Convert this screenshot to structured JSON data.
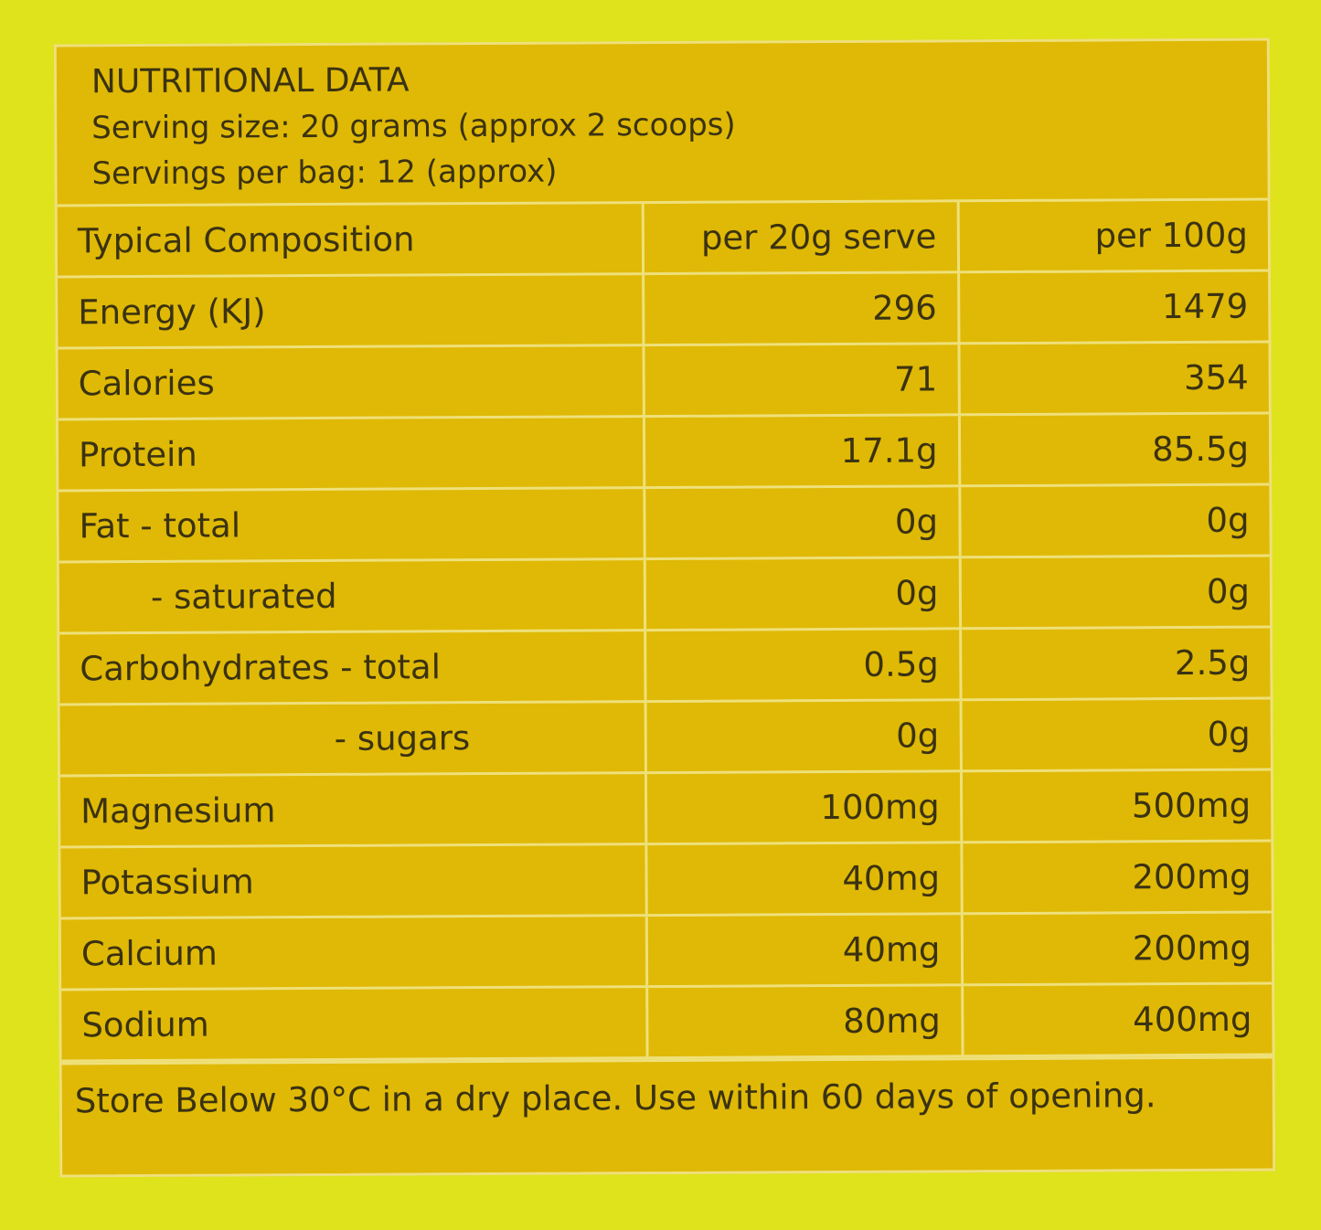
{
  "title": "NUTRITIONAL DATA",
  "serving_size": "Serving size:  20 grams (approx 2 scoops)",
  "servings_per_bag": "Servings per bag: 12 (approx)",
  "table": {
    "headers": [
      "Typical Composition",
      "per 20g serve",
      "per 100g"
    ],
    "rows": [
      {
        "label": "Energy (KJ)",
        "per_serve": "296",
        "per_100g": "1479",
        "indent": 0
      },
      {
        "label": "Calories",
        "per_serve": "71",
        "per_100g": "354",
        "indent": 0
      },
      {
        "label": "Protein",
        "per_serve": "17.1g",
        "per_100g": "85.5g",
        "indent": 0
      },
      {
        "label": "Fat  - total",
        "per_serve": "0g",
        "per_100g": "0g",
        "indent": 0
      },
      {
        "label": "- saturated",
        "per_serve": "0g",
        "per_100g": "0g",
        "indent": 1
      },
      {
        "label": "Carbohydrates - total",
        "per_serve": "0.5g",
        "per_100g": "2.5g",
        "indent": 0
      },
      {
        "label": "- sugars",
        "per_serve": "0g",
        "per_100g": "0g",
        "indent": 2
      },
      {
        "label": "Magnesium",
        "per_serve": "100mg",
        "per_100g": "500mg",
        "indent": 0
      },
      {
        "label": "Potassium",
        "per_serve": "40mg",
        "per_100g": "200mg",
        "indent": 0
      },
      {
        "label": "Calcium",
        "per_serve": "40mg",
        "per_100g": "200mg",
        "indent": 0
      },
      {
        "label": "Sodium",
        "per_serve": "80mg",
        "per_100g": "400mg",
        "indent": 0
      }
    ]
  },
  "footer": "Store Below 30°C in a dry place. Use within 60 days of opening.",
  "colors": {
    "background": "#dfe31c",
    "panel": "#dfb905",
    "lines": "#efe07a",
    "text": "#3b3212"
  }
}
